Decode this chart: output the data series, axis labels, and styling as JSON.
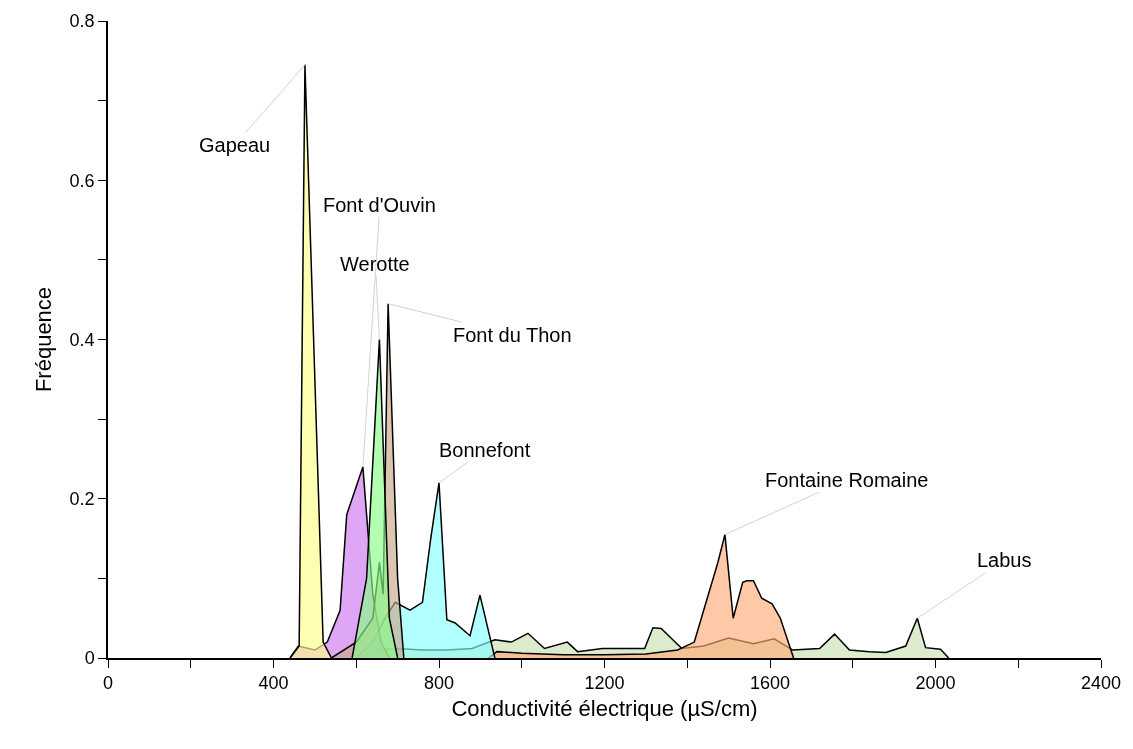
{
  "chart_data": {
    "type": "area",
    "xlabel": "Conductivité électrique (µS/cm)",
    "ylabel": "Fréquence",
    "xlim": [
      0,
      2400
    ],
    "ylim": [
      0,
      0.8
    ],
    "xticks": [
      0,
      {
        "value": 200,
        "label": null
      },
      400,
      {
        "value": 600,
        "label": null
      },
      800,
      {
        "value": 1000,
        "label": null
      },
      1200,
      {
        "value": 1400,
        "label": null
      },
      1600,
      {
        "value": 1800,
        "label": null
      },
      2000,
      {
        "value": 2200,
        "label": null
      },
      2400
    ],
    "yticks": [
      0,
      {
        "value": 0.1,
        "label": null
      },
      0.2,
      {
        "value": 0.3,
        "label": null
      },
      0.4,
      {
        "value": 0.5,
        "label": null
      },
      0.6,
      {
        "value": 0.7,
        "label": null
      },
      0.8
    ],
    "series": [
      {
        "name": "Labus",
        "color": "#c8e0b0",
        "x": [
          600,
          660,
          700,
          760,
          820,
          880,
          935,
          975,
          1015,
          1055,
          1110,
          1135,
          1195,
          1250,
          1297,
          1317,
          1337,
          1387,
          1440,
          1500,
          1560,
          1610,
          1655,
          1720,
          1756,
          1792,
          1840,
          1880,
          1928,
          1956,
          1976,
          2012,
          2032
        ],
        "values": [
          0,
          0.01,
          0.012,
          0.01,
          0.01,
          0.012,
          0.023,
          0.02,
          0.031,
          0.012,
          0.02,
          0.008,
          0.012,
          0.012,
          0.012,
          0.038,
          0.037,
          0.012,
          0.015,
          0.025,
          0.018,
          0.024,
          0.01,
          0.012,
          0.03,
          0.01,
          0.008,
          0.007,
          0.015,
          0.05,
          0.013,
          0.011,
          0
        ]
      },
      {
        "name": "Fontaine Romaine",
        "color": "#ffaa77",
        "x": [
          920,
          940,
          1000,
          1100,
          1200,
          1300,
          1377,
          1417,
          1474,
          1491,
          1511,
          1534,
          1544,
          1560,
          1580,
          1605,
          1625,
          1657
        ],
        "values": [
          0,
          0.008,
          0.006,
          0.004,
          0.004,
          0.005,
          0.01,
          0.02,
          0.12,
          0.155,
          0.05,
          0.095,
          0.097,
          0.097,
          0.075,
          0.068,
          0.05,
          0
        ]
      },
      {
        "name": "Bonnefont",
        "color": "#88ffff",
        "x": [
          600,
          640,
          670,
          694,
          730,
          760,
          780,
          800,
          819,
          839,
          875,
          899,
          935
        ],
        "values": [
          0,
          0.02,
          0.05,
          0.07,
          0.06,
          0.07,
          0.15,
          0.22,
          0.048,
          0.044,
          0.028,
          0.079,
          0
        ]
      },
      {
        "name": "Font d'Ouvin",
        "color": "#cc77ee",
        "x": [
          440,
          460,
          500,
          530,
          561,
          577,
          616,
          640,
          660,
          680
        ],
        "values": [
          0,
          0.015,
          0.01,
          0.02,
          0.06,
          0.18,
          0.24,
          0.08,
          0.02,
          0
        ]
      },
      {
        "name": "Gapeau",
        "color": "#ffff88",
        "x": [
          440,
          462,
          476,
          520,
          540
        ],
        "values": [
          0,
          0.015,
          0.745,
          0.02,
          0
        ]
      },
      {
        "name": "Font du Thon",
        "color": "#c8a888",
        "x": [
          540,
          600,
          640,
          656,
          665,
          677,
          700,
          715
        ],
        "values": [
          0,
          0.02,
          0.05,
          0.12,
          0.08,
          0.445,
          0.1,
          0
        ]
      },
      {
        "name": "Werotte",
        "color": "#88ff88",
        "x": [
          590,
          625,
          656,
          680,
          700
        ],
        "values": [
          0,
          0.1,
          0.4,
          0.05,
          0
        ]
      }
    ]
  }
}
